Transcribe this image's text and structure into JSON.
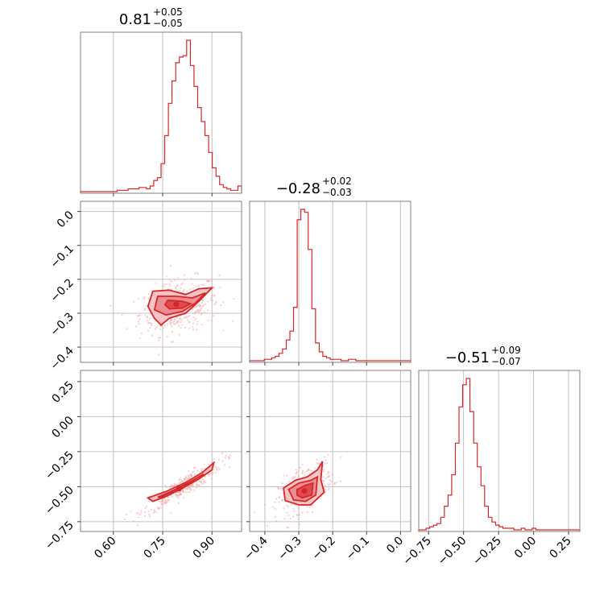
{
  "chart_data": {
    "type": "corner",
    "color": "#d62728",
    "parameters": [
      {
        "title": "0.81",
        "title_plus": "+0.05",
        "title_minus": "−0.05",
        "range": [
          0.5,
          0.99
        ],
        "ticks": [
          0.6,
          0.75,
          0.9
        ],
        "tick_labels": [
          "0.60",
          "0.75",
          "0.90"
        ]
      },
      {
        "title": "−0.28",
        "title_plus": "+0.02",
        "title_minus": "−0.03",
        "range": [
          -0.445,
          0.03
        ],
        "ticks": [
          -0.4,
          -0.3,
          -0.2,
          -0.1,
          0.0
        ],
        "tick_labels": [
          "−0.4",
          "−0.3",
          "−0.2",
          "−0.1",
          "0.0"
        ]
      },
      {
        "title": "−0.51",
        "title_plus": "+0.09",
        "title_minus": "−0.07",
        "range": [
          -0.82,
          0.33
        ],
        "ticks": [
          -0.75,
          -0.5,
          -0.25,
          0.0,
          0.25
        ],
        "tick_labels": [
          "−0.75",
          "−0.50",
          "−0.25",
          "0.00",
          "0.25"
        ]
      }
    ],
    "histograms": [
      {
        "param": 0,
        "bin_range": [
          0.5,
          0.99
        ],
        "counts": [
          0,
          0,
          0,
          0,
          0,
          0,
          0,
          0,
          0,
          0,
          1,
          1,
          1,
          2,
          2,
          2,
          3,
          3,
          2,
          4,
          8,
          10,
          20,
          40,
          63,
          79,
          92,
          96,
          97,
          108,
          90,
          75,
          60,
          50,
          40,
          28,
          17,
          11,
          5,
          3,
          2,
          1,
          1,
          4
        ]
      },
      {
        "param": 1,
        "bin_range": [
          -0.445,
          0.03
        ],
        "counts": [
          0,
          0,
          0,
          0,
          1,
          1,
          2,
          3,
          5,
          8,
          14,
          20,
          36,
          95,
          102,
          100,
          75,
          35,
          12,
          6,
          3,
          2,
          1,
          1,
          1,
          0,
          0,
          1,
          1,
          0,
          0,
          0,
          0,
          0,
          0,
          0,
          0,
          0,
          0,
          0,
          0,
          0,
          0,
          0
        ]
      },
      {
        "param": 2,
        "bin_range": [
          -0.82,
          0.33
        ],
        "counts": [
          0,
          0,
          1,
          2,
          3,
          4,
          8,
          15,
          22,
          35,
          55,
          78,
          92,
          96,
          75,
          55,
          40,
          28,
          15,
          8,
          5,
          3,
          2,
          1,
          1,
          1,
          0,
          0,
          1,
          0,
          0,
          1,
          0,
          0,
          0,
          0,
          0,
          0,
          0,
          0,
          0,
          0,
          0,
          0
        ]
      }
    ],
    "contours_2d": [
      {
        "x_param": 0,
        "y_param": 1,
        "levels": [
          [
            [
              0.72,
              -0.235
            ],
            [
              0.77,
              -0.232
            ],
            [
              0.82,
              -0.245
            ],
            [
              0.86,
              -0.228
            ],
            [
              0.9,
              -0.225
            ],
            [
              0.86,
              -0.265
            ],
            [
              0.82,
              -0.3
            ],
            [
              0.77,
              -0.315
            ],
            [
              0.745,
              -0.335
            ],
            [
              0.725,
              -0.315
            ],
            [
              0.705,
              -0.28
            ]
          ],
          [
            [
              0.735,
              -0.25
            ],
            [
              0.79,
              -0.25
            ],
            [
              0.84,
              -0.255
            ],
            [
              0.88,
              -0.24
            ],
            [
              0.85,
              -0.27
            ],
            [
              0.81,
              -0.295
            ],
            [
              0.76,
              -0.305
            ],
            [
              0.725,
              -0.29
            ]
          ],
          [
            [
              0.765,
              -0.262
            ],
            [
              0.81,
              -0.265
            ],
            [
              0.835,
              -0.272
            ],
            [
              0.81,
              -0.285
            ],
            [
              0.77,
              -0.287
            ],
            [
              0.757,
              -0.275
            ]
          ]
        ]
      },
      {
        "x_param": 0,
        "y_param": 2,
        "levels": [
          [
            [
              0.705,
              -0.58
            ],
            [
              0.76,
              -0.535
            ],
            [
              0.82,
              -0.47
            ],
            [
              0.87,
              -0.4
            ],
            [
              0.905,
              -0.33
            ],
            [
              0.9,
              -0.38
            ],
            [
              0.86,
              -0.445
            ],
            [
              0.81,
              -0.51
            ],
            [
              0.76,
              -0.57
            ],
            [
              0.72,
              -0.605
            ]
          ],
          [
            [
              0.735,
              -0.575
            ],
            [
              0.78,
              -0.53
            ],
            [
              0.83,
              -0.47
            ],
            [
              0.875,
              -0.41
            ],
            [
              0.85,
              -0.445
            ],
            [
              0.81,
              -0.5
            ],
            [
              0.77,
              -0.545
            ],
            [
              0.745,
              -0.575
            ]
          ],
          [
            [
              0.77,
              -0.545
            ],
            [
              0.8,
              -0.505
            ],
            [
              0.83,
              -0.475
            ],
            [
              0.815,
              -0.505
            ],
            [
              0.785,
              -0.54
            ]
          ]
        ]
      },
      {
        "x_param": 1,
        "y_param": 2,
        "levels": [
          [
            [
              -0.345,
              -0.51
            ],
            [
              -0.31,
              -0.455
            ],
            [
              -0.275,
              -0.43
            ],
            [
              -0.245,
              -0.38
            ],
            [
              -0.23,
              -0.32
            ],
            [
              -0.235,
              -0.45
            ],
            [
              -0.225,
              -0.54
            ],
            [
              -0.245,
              -0.585
            ],
            [
              -0.265,
              -0.63
            ],
            [
              -0.3,
              -0.63
            ],
            [
              -0.34,
              -0.6
            ]
          ],
          [
            [
              -0.33,
              -0.52
            ],
            [
              -0.3,
              -0.475
            ],
            [
              -0.265,
              -0.455
            ],
            [
              -0.245,
              -0.43
            ],
            [
              -0.25,
              -0.56
            ],
            [
              -0.28,
              -0.605
            ],
            [
              -0.315,
              -0.595
            ]
          ],
          [
            [
              -0.305,
              -0.52
            ],
            [
              -0.28,
              -0.49
            ],
            [
              -0.258,
              -0.475
            ],
            [
              -0.262,
              -0.56
            ],
            [
              -0.29,
              -0.58
            ],
            [
              -0.305,
              -0.56
            ]
          ]
        ]
      }
    ],
    "grid": true
  }
}
